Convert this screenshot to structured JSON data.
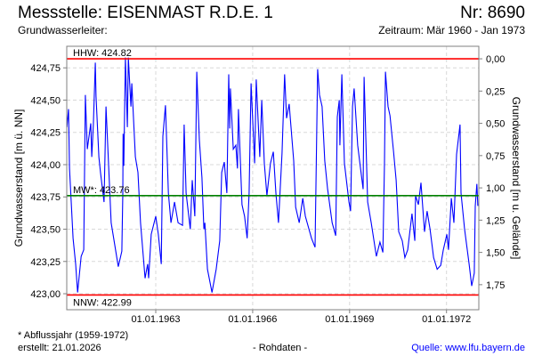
{
  "header": {
    "title": "Messstelle: EISENMAST R.D.E. 1",
    "number": "Nr: 8690",
    "aquifer": "Grundwasserleiter:",
    "period": "Zeitraum: Mär 1960 - Jan 1973"
  },
  "footer": {
    "note": "* Abflussjahr (1959-1972)",
    "created": "erstellt:  21.01.2026",
    "datatype": "- Rohdaten -",
    "source": "Quelle: www.lfu.bayern.de"
  },
  "colors": {
    "series": "#0000ff",
    "extremes": "#ff0000",
    "mean": "#008000",
    "grid": "#d8d8d8",
    "frame": "#808080"
  },
  "chart_data": {
    "type": "line",
    "ylabel": "Grundwasserstand [m ü. NN]",
    "y2label": "Grundwasserstand [m u. Gelände]",
    "xlim": [
      1960.245,
      1973.0
    ],
    "ylim": [
      422.876,
      424.917
    ],
    "grid": true,
    "xticks": [
      {
        "x": 1963,
        "label": "01.01.1963"
      },
      {
        "x": 1966,
        "label": "01.01.1966"
      },
      {
        "x": 1969,
        "label": "01.01.1969"
      },
      {
        "x": 1972,
        "label": "01.01.1972"
      }
    ],
    "yticks": [
      {
        "y": 423.0,
        "label": "423,00"
      },
      {
        "y": 423.25,
        "label": "423,25"
      },
      {
        "y": 423.5,
        "label": "423,50"
      },
      {
        "y": 423.75,
        "label": "423,75"
      },
      {
        "y": 424.0,
        "label": "424,00"
      },
      {
        "y": 424.25,
        "label": "424,25"
      },
      {
        "y": 424.5,
        "label": "424,50"
      },
      {
        "y": 424.75,
        "label": "424,75"
      }
    ],
    "y2_reference": 424.82,
    "y2ticks": [
      {
        "v": 0,
        "label": "0,00"
      },
      {
        "v": 0.25,
        "label": "0,25"
      },
      {
        "v": 0.5,
        "label": "0,50"
      },
      {
        "v": 0.75,
        "label": "0,75"
      },
      {
        "v": 1.0,
        "label": "1,00"
      },
      {
        "v": 1.25,
        "label": "1,25"
      },
      {
        "v": 1.5,
        "label": "1,50"
      },
      {
        "v": 1.75,
        "label": "1,75"
      }
    ],
    "reference_lines": [
      {
        "name": "HHW",
        "value": 424.82,
        "label": "HHW: 424.82",
        "color": "#ff0000"
      },
      {
        "name": "MW",
        "value": 423.76,
        "label": "MW*: 423.76",
        "color": "#008000"
      },
      {
        "name": "NNW",
        "value": 422.99,
        "label": "NNW: 422.99",
        "color": "#ff0000"
      }
    ],
    "series": [
      {
        "name": "Grundwasserstand",
        "points": [
          [
            1960.25,
            424.29
          ],
          [
            1960.3,
            424.43
          ],
          [
            1960.33,
            423.97
          ],
          [
            1960.44,
            423.43
          ],
          [
            1960.52,
            423.23
          ],
          [
            1960.58,
            423.01
          ],
          [
            1960.69,
            423.29
          ],
          [
            1960.77,
            423.34
          ],
          [
            1960.82,
            424.54
          ],
          [
            1960.88,
            424.12
          ],
          [
            1960.99,
            424.32
          ],
          [
            1961.02,
            424.06
          ],
          [
            1961.07,
            424.31
          ],
          [
            1961.13,
            424.79
          ],
          [
            1961.15,
            424.53
          ],
          [
            1961.24,
            424.06
          ],
          [
            1961.29,
            423.94
          ],
          [
            1961.4,
            423.71
          ],
          [
            1961.46,
            424.45
          ],
          [
            1961.62,
            423.55
          ],
          [
            1961.71,
            423.41
          ],
          [
            1961.84,
            423.21
          ],
          [
            1961.95,
            423.33
          ],
          [
            1961.98,
            423.78
          ],
          [
            1961.99,
            424.24
          ],
          [
            1962.01,
            423.99
          ],
          [
            1962.06,
            424.83
          ],
          [
            1962.12,
            424.29
          ],
          [
            1962.15,
            424.83
          ],
          [
            1962.23,
            424.45
          ],
          [
            1962.26,
            424.63
          ],
          [
            1962.37,
            424.06
          ],
          [
            1962.45,
            423.94
          ],
          [
            1962.53,
            423.55
          ],
          [
            1962.67,
            423.12
          ],
          [
            1962.75,
            423.23
          ],
          [
            1962.78,
            423.12
          ],
          [
            1962.86,
            423.46
          ],
          [
            1963.0,
            423.6
          ],
          [
            1963.08,
            423.46
          ],
          [
            1963.17,
            423.23
          ],
          [
            1963.22,
            424.22
          ],
          [
            1963.3,
            424.46
          ],
          [
            1963.39,
            423.78
          ],
          [
            1963.47,
            423.55
          ],
          [
            1963.58,
            423.71
          ],
          [
            1963.69,
            423.55
          ],
          [
            1963.83,
            423.53
          ],
          [
            1963.88,
            424.31
          ],
          [
            1963.94,
            423.78
          ],
          [
            1964.07,
            423.5
          ],
          [
            1964.13,
            423.88
          ],
          [
            1964.21,
            423.6
          ],
          [
            1964.27,
            424.72
          ],
          [
            1964.35,
            424.19
          ],
          [
            1964.43,
            423.9
          ],
          [
            1964.49,
            423.5
          ],
          [
            1964.52,
            423.55
          ],
          [
            1964.6,
            423.19
          ],
          [
            1964.74,
            423.01
          ],
          [
            1964.87,
            423.19
          ],
          [
            1964.98,
            423.41
          ],
          [
            1965.04,
            423.94
          ],
          [
            1965.12,
            424.02
          ],
          [
            1965.2,
            423.78
          ],
          [
            1965.26,
            424.7
          ],
          [
            1965.29,
            424.28
          ],
          [
            1965.31,
            424.59
          ],
          [
            1965.4,
            424.12
          ],
          [
            1965.48,
            424.15
          ],
          [
            1965.53,
            423.97
          ],
          [
            1965.56,
            424.43
          ],
          [
            1965.67,
            423.69
          ],
          [
            1965.75,
            423.6
          ],
          [
            1965.83,
            423.43
          ],
          [
            1965.89,
            423.78
          ],
          [
            1965.95,
            424.63
          ],
          [
            1966.06,
            424.01
          ],
          [
            1966.11,
            424.66
          ],
          [
            1966.22,
            424.06
          ],
          [
            1966.28,
            424.5
          ],
          [
            1966.36,
            424.01
          ],
          [
            1966.44,
            423.76
          ],
          [
            1966.55,
            424.01
          ],
          [
            1966.64,
            424.1
          ],
          [
            1966.72,
            423.78
          ],
          [
            1966.8,
            423.55
          ],
          [
            1966.91,
            424.09
          ],
          [
            1966.99,
            424.7
          ],
          [
            1967.05,
            424.36
          ],
          [
            1967.13,
            424.47
          ],
          [
            1967.27,
            424.03
          ],
          [
            1967.33,
            423.67
          ],
          [
            1967.44,
            423.55
          ],
          [
            1967.55,
            423.74
          ],
          [
            1967.63,
            423.6
          ],
          [
            1967.82,
            423.43
          ],
          [
            1967.93,
            423.36
          ],
          [
            1968.01,
            424.74
          ],
          [
            1968.07,
            424.54
          ],
          [
            1968.15,
            424.45
          ],
          [
            1968.23,
            424.03
          ],
          [
            1968.32,
            423.81
          ],
          [
            1968.46,
            423.55
          ],
          [
            1968.57,
            423.45
          ],
          [
            1968.62,
            424.37
          ],
          [
            1968.68,
            424.5
          ],
          [
            1968.7,
            424.15
          ],
          [
            1968.76,
            424.7
          ],
          [
            1968.84,
            424.01
          ],
          [
            1968.98,
            423.71
          ],
          [
            1969.03,
            423.64
          ],
          [
            1969.09,
            424.45
          ],
          [
            1969.14,
            424.59
          ],
          [
            1969.25,
            424.15
          ],
          [
            1969.34,
            423.97
          ],
          [
            1969.42,
            423.81
          ],
          [
            1969.45,
            424.68
          ],
          [
            1969.56,
            423.71
          ],
          [
            1969.67,
            423.55
          ],
          [
            1969.81,
            423.32
          ],
          [
            1969.83,
            423.29
          ],
          [
            1969.94,
            423.4
          ],
          [
            1970.03,
            423.32
          ],
          [
            1970.08,
            424.01
          ],
          [
            1970.11,
            424.72
          ],
          [
            1970.19,
            424.45
          ],
          [
            1970.25,
            424.38
          ],
          [
            1970.36,
            424.1
          ],
          [
            1970.44,
            423.88
          ],
          [
            1970.52,
            423.48
          ],
          [
            1970.63,
            423.41
          ],
          [
            1970.71,
            423.28
          ],
          [
            1970.8,
            423.34
          ],
          [
            1970.93,
            423.62
          ],
          [
            1971.02,
            423.41
          ],
          [
            1971.04,
            423.76
          ],
          [
            1971.13,
            423.69
          ],
          [
            1971.21,
            423.86
          ],
          [
            1971.32,
            423.48
          ],
          [
            1971.4,
            423.64
          ],
          [
            1971.49,
            423.5
          ],
          [
            1971.6,
            423.28
          ],
          [
            1971.71,
            423.19
          ],
          [
            1971.82,
            423.22
          ],
          [
            1971.9,
            423.34
          ],
          [
            1972.01,
            423.46
          ],
          [
            1972.06,
            423.34
          ],
          [
            1972.15,
            423.74
          ],
          [
            1972.23,
            423.55
          ],
          [
            1972.31,
            424.08
          ],
          [
            1972.42,
            424.31
          ],
          [
            1972.45,
            423.78
          ],
          [
            1972.56,
            423.5
          ],
          [
            1972.7,
            423.23
          ],
          [
            1972.78,
            423.06
          ],
          [
            1972.86,
            423.16
          ],
          [
            1972.89,
            423.68
          ],
          [
            1972.94,
            423.85
          ],
          [
            1972.97,
            423.68
          ]
        ]
      }
    ]
  }
}
